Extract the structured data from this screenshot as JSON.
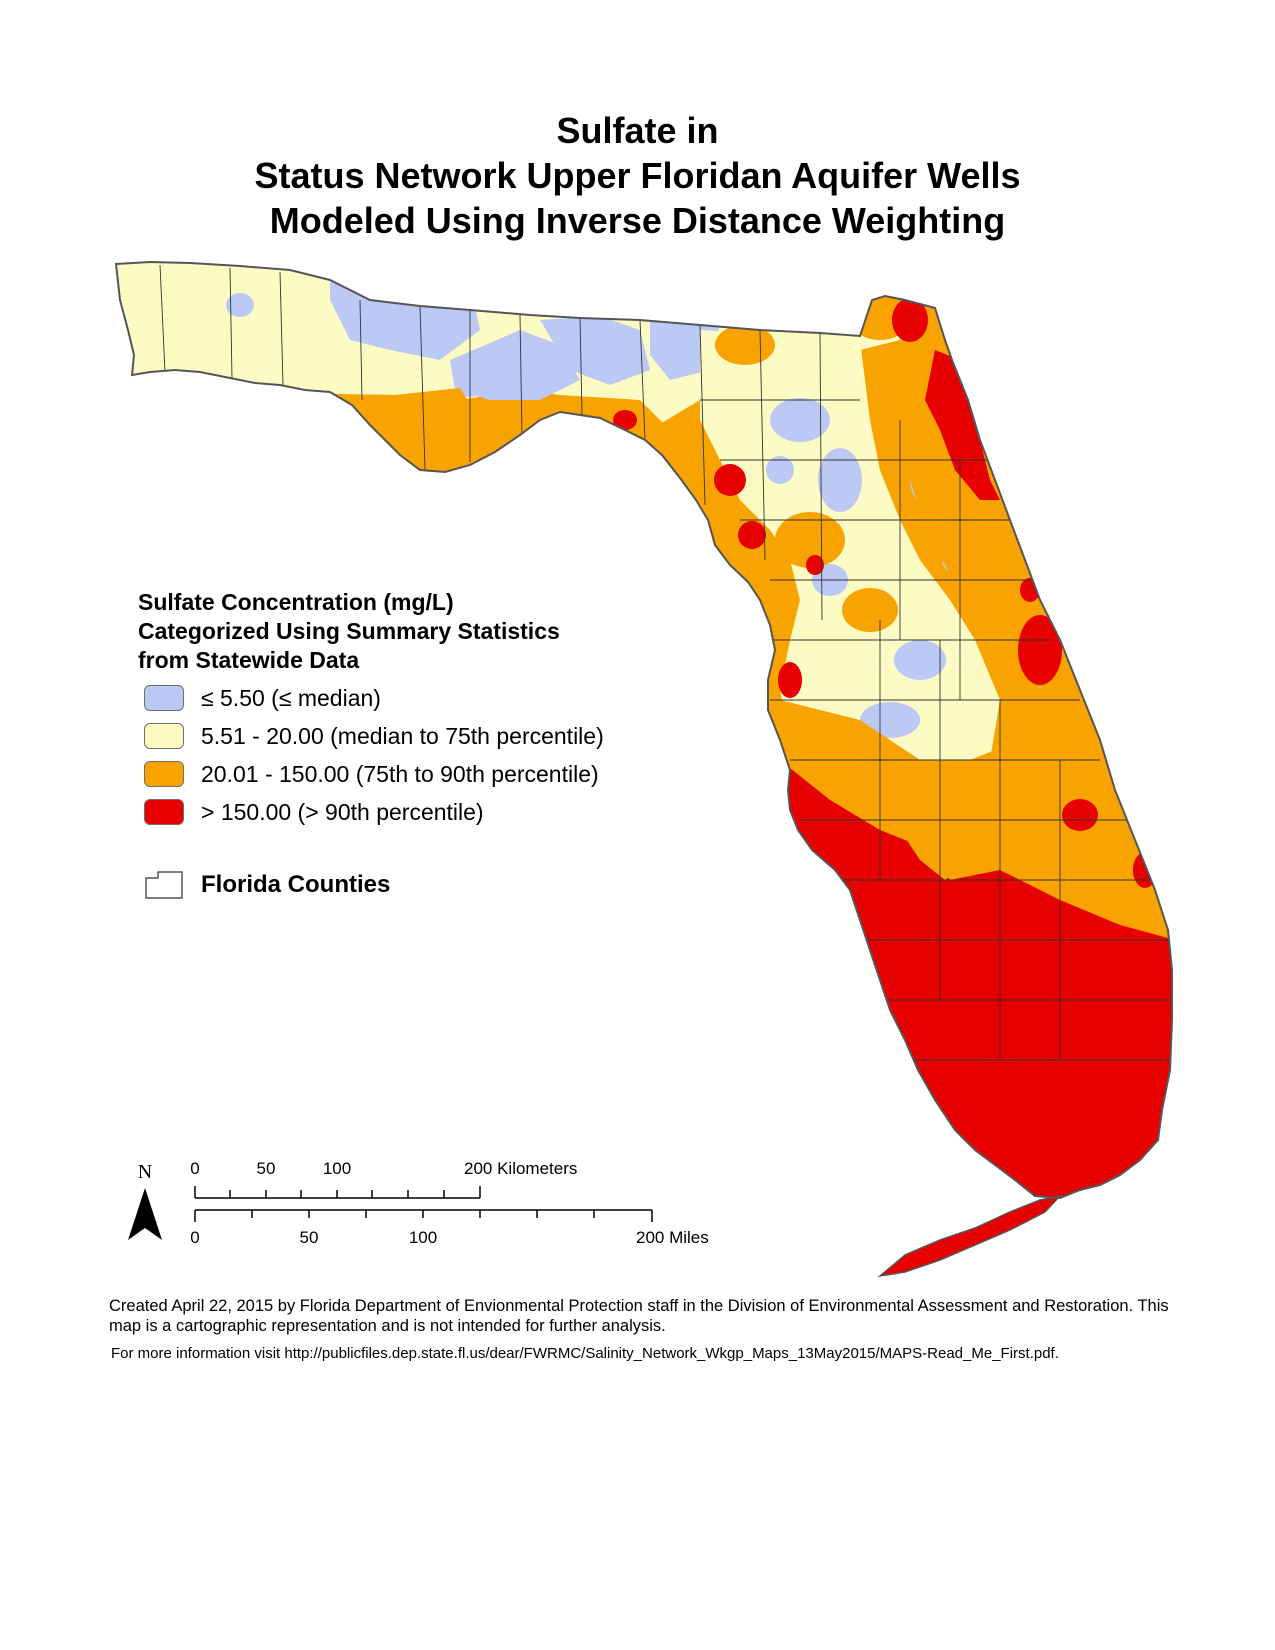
{
  "title": {
    "line1": "Sulfate in",
    "line2": "Status Network Upper Floridan Aquifer Wells",
    "line3": "Modeled Using Inverse Distance Weighting"
  },
  "legend": {
    "title_line1": "Sulfate Concentration (mg/L)",
    "title_line2": "Categorized Using Summary Statistics",
    "title_line3": "from Statewide Data",
    "items": [
      {
        "label": "≤ 5.50 (≤ median)",
        "color": "#bcc9f5"
      },
      {
        "label": "5.51 - 20.00 (median to 75th percentile)",
        "color": "#fdfbc4"
      },
      {
        "label": "20.01 - 150.00 (75th to 90th percentile)",
        "color": "#f8a300"
      },
      {
        "label": "> 150.00 (> 90th percentile)",
        "color": "#e60000"
      }
    ],
    "counties_label": "Florida Counties"
  },
  "scalebar": {
    "north_label": "N",
    "km_ticks": [
      "0",
      "50",
      "100",
      "200 Kilometers"
    ],
    "mi_ticks": [
      "0",
      "50",
      "100",
      "200 Miles"
    ]
  },
  "footer": {
    "credit": "Created April 22, 2015 by Florida Department of Envionmental Protection staff in the Division of Environmental Assessment and Restoration.  This map is a cartographic representation and is not intended for further analysis.",
    "more_info": "For more information visit http://publicfiles.dep.state.fl.us/dear/FWRMC/Salinity_Network_Wkgp_Maps_13May2015/MAPS-Read_Me_First.pdf."
  }
}
